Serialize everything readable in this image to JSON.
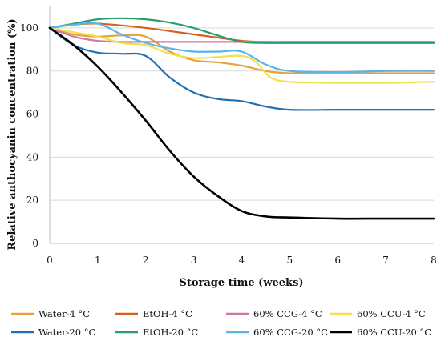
{
  "chart_data": {
    "type": "line",
    "xlabel": "Storage time (weeks)",
    "ylabel": "Relative anthocyanin concentration (%)",
    "xlim": [
      0,
      8
    ],
    "ylim": [
      0,
      110
    ],
    "x_ticks": [
      0,
      1,
      2,
      3,
      4,
      5,
      6,
      7,
      8
    ],
    "y_ticks": [
      0,
      20,
      40,
      60,
      80,
      100
    ],
    "grid": "horizontal",
    "legend_position": "bottom",
    "series": [
      {
        "name": "Water-4 °C",
        "color": "#E6A23C",
        "x": [
          0,
          0.5,
          1,
          1.5,
          2,
          2.5,
          3,
          3.5,
          4,
          4.5,
          5,
          6,
          7,
          8
        ],
        "y": [
          100,
          97,
          96,
          96.5,
          96,
          89,
          85,
          84,
          82.5,
          80,
          79,
          79,
          79,
          79
        ]
      },
      {
        "name": "EtOH-4 °C",
        "color": "#D4621E",
        "x": [
          0,
          0.5,
          1,
          2,
          3,
          3.5,
          4,
          4.5,
          5,
          6,
          7,
          8
        ],
        "y": [
          100,
          101.5,
          102,
          100,
          97,
          95.5,
          94,
          93.5,
          93.5,
          93.5,
          93.5,
          93.5
        ]
      },
      {
        "name": "60% CCG-4 °C",
        "color": "#CC77AA",
        "x": [
          0,
          0.5,
          1,
          1.5,
          2,
          3,
          4,
          5,
          6,
          7,
          8
        ],
        "y": [
          100,
          96,
          94,
          93.5,
          93.5,
          93.5,
          93.5,
          93.5,
          93.5,
          93.5,
          93.5
        ]
      },
      {
        "name": "60% CCU-4 °C",
        "color": "#F2E14A",
        "x": [
          0,
          0.5,
          1,
          1.5,
          2,
          2.5,
          3,
          3.5,
          4,
          4.3,
          4.6,
          5,
          6,
          7,
          8
        ],
        "y": [
          100,
          98,
          96,
          93,
          92,
          88,
          86,
          86.5,
          87,
          84,
          77,
          75,
          74.5,
          74.5,
          75
        ]
      },
      {
        "name": "Water-20 °C",
        "color": "#1F6FB2",
        "x": [
          0,
          0.5,
          1,
          1.5,
          2,
          2.5,
          3,
          3.5,
          4,
          4.5,
          5,
          6,
          7,
          8
        ],
        "y": [
          100,
          92,
          88.5,
          88,
          87,
          77,
          70,
          67,
          66,
          63.5,
          62,
          62,
          62,
          62
        ]
      },
      {
        "name": "EtOH-20 °C",
        "color": "#2A9D6F",
        "x": [
          0,
          0.5,
          1,
          1.5,
          2,
          2.5,
          3,
          3.5,
          4,
          4.5,
          5,
          6,
          7,
          8
        ],
        "y": [
          100,
          102,
          104,
          104.5,
          104,
          102.5,
          100,
          96.5,
          93.5,
          93,
          93,
          93,
          93,
          93
        ]
      },
      {
        "name": "60% CCG-20 °C",
        "color": "#5AB4E5",
        "x": [
          0,
          0.5,
          1,
          1.5,
          2,
          2.5,
          3,
          3.5,
          4,
          4.5,
          5,
          6,
          7,
          8
        ],
        "y": [
          100,
          101.5,
          102,
          97,
          93,
          90.5,
          89,
          89,
          89,
          83,
          80,
          79.5,
          80,
          80
        ]
      },
      {
        "name": "60% CCU-20 °C",
        "color": "#000000",
        "x": [
          0,
          0.5,
          1,
          1.5,
          2,
          2.5,
          3,
          3.5,
          4,
          4.5,
          5,
          6,
          7,
          8
        ],
        "y": [
          100,
          92,
          82,
          70,
          57,
          43,
          31,
          22,
          15,
          12.5,
          12,
          11.5,
          11.5,
          11.5
        ]
      }
    ]
  }
}
